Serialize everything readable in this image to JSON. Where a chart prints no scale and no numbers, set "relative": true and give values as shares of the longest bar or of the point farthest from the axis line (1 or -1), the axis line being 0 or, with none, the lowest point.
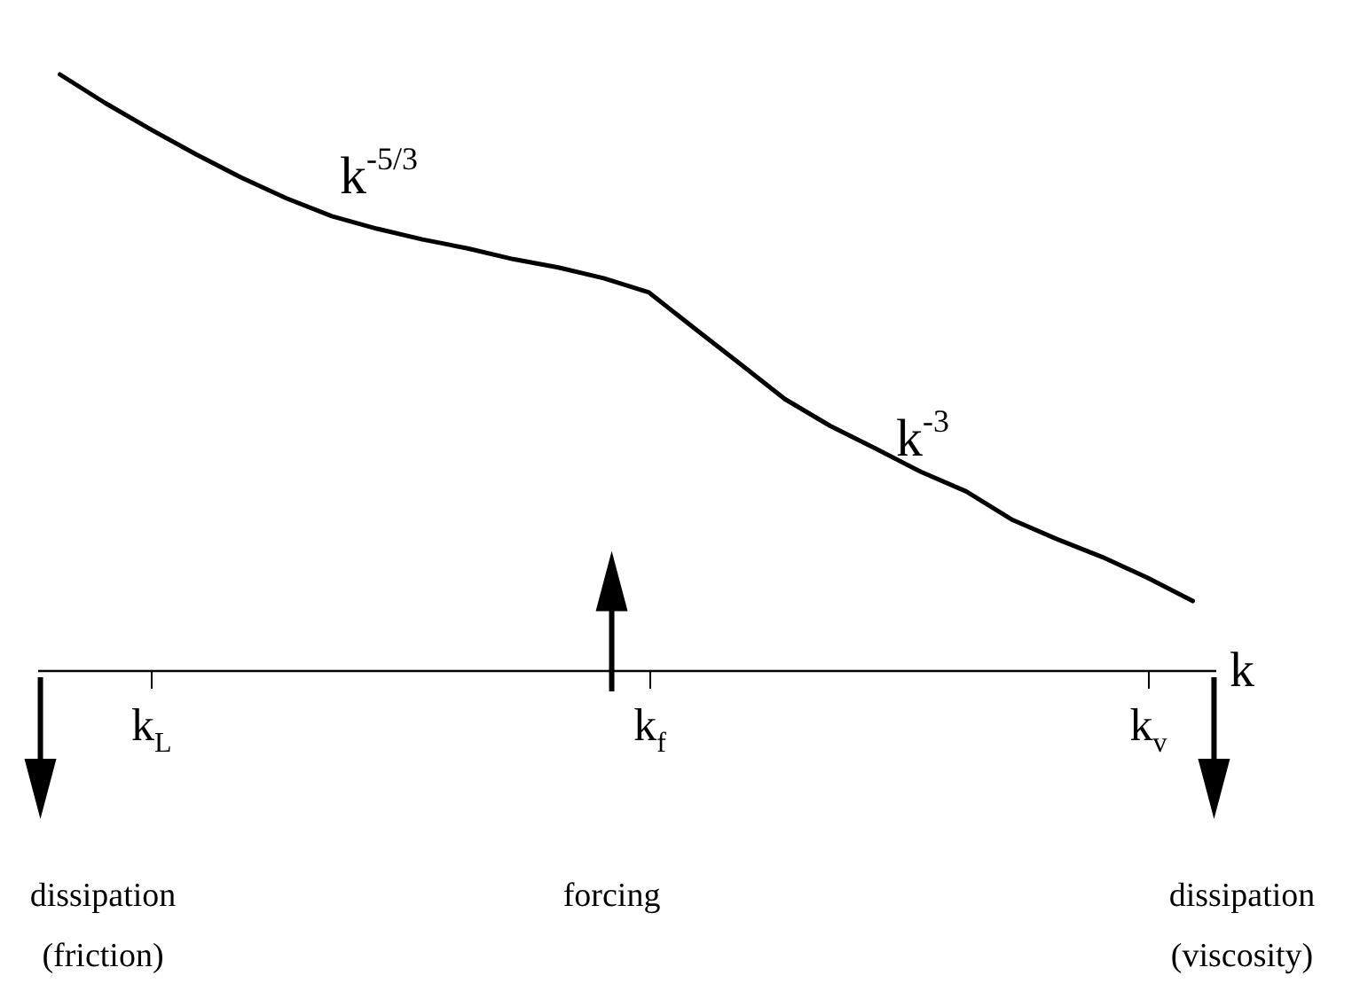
{
  "chart_data": {
    "type": "line",
    "relative": true,
    "xlabel": "k",
    "categories": [
      null,
      null,
      "k$_{L}$",
      null,
      null,
      null,
      null,
      null,
      null,
      null,
      null,
      null,
      null,
      "k$_{f}$",
      null,
      null,
      null,
      null,
      null,
      null,
      null,
      null,
      null,
      null,
      "k$_{v}$",
      null
    ],
    "series": [
      {
        "color": "#000000",
        "values": [
          1.0,
          0.952,
          0.908,
          0.866,
          0.827,
          0.792,
          0.762,
          0.741,
          0.723,
          0.708,
          0.69,
          0.676,
          0.658,
          0.634,
          0.574,
          0.515,
          0.455,
          0.41,
          0.372,
          0.333,
          0.3,
          0.253,
          0.22,
          0.19,
          0.155,
          0.116
        ]
      }
    ],
    "annotations": [
      "k$^{-5/3}$",
      "k$^{-3}$",
      "dissipation (friction)",
      "forcing",
      "dissipation (viscosity)"
    ]
  }
}
